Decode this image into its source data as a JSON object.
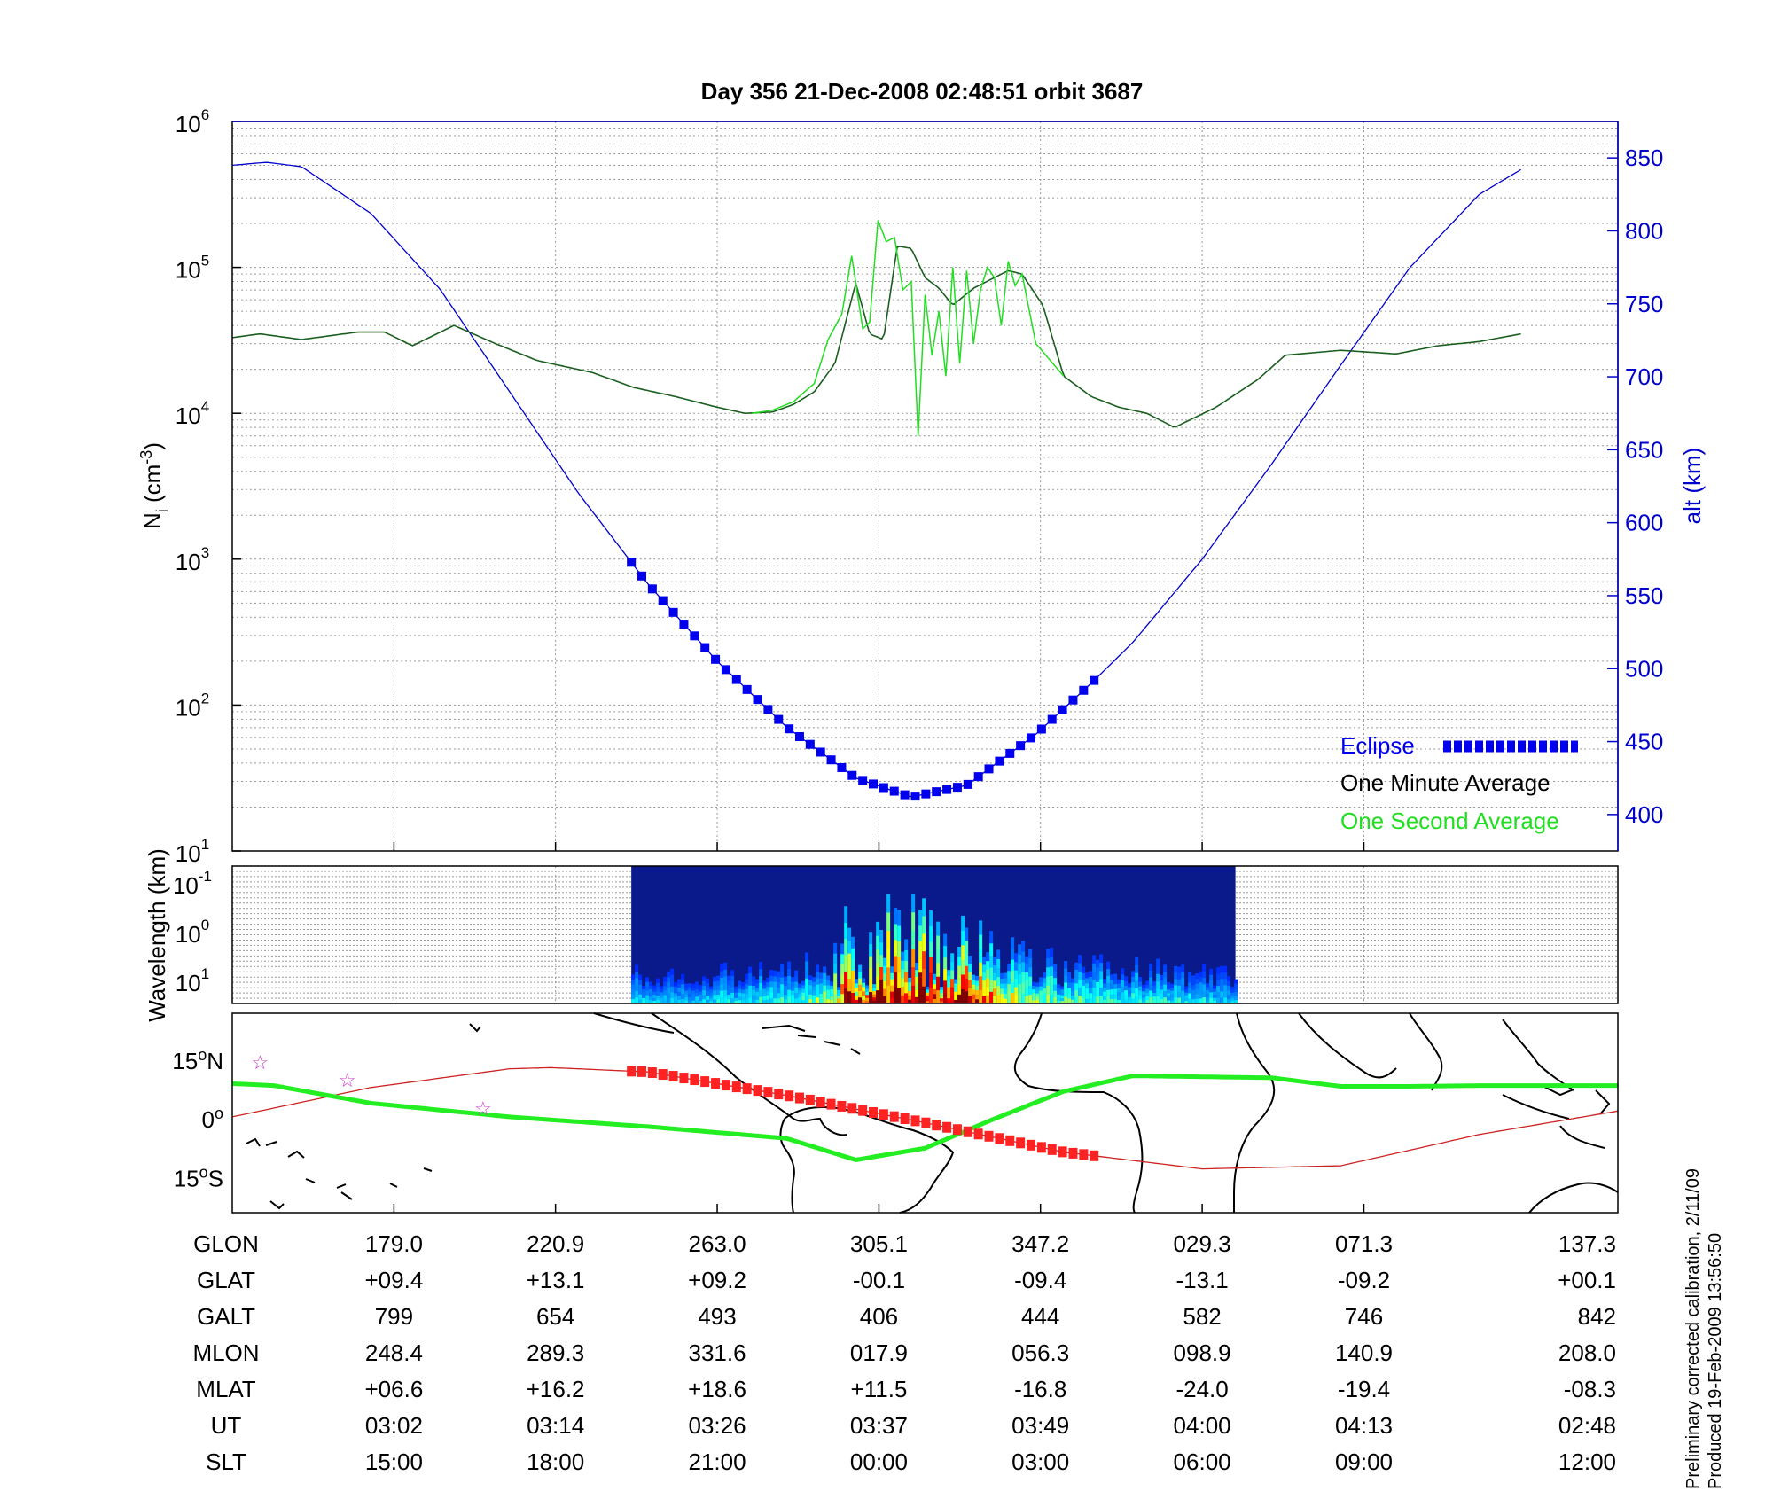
{
  "title": "Day 356  21-Dec-2008 02:48:51   orbit 3687",
  "footer": {
    "line1": "Preliminary corrected calibration, 2/11/09",
    "line2": "Produced 19-Feb-2009 13:56:50"
  },
  "colors": {
    "altitude": "#0000cc",
    "eclipse": "#0000ee",
    "one_minute": "#000000",
    "one_second": "#22dd22",
    "map_track": "#ff2222",
    "map_track_thin": "#cc2222",
    "magnetic_equator": "#22ee22",
    "stars": "#cc44cc"
  },
  "chart_data": [
    {
      "type": "line",
      "panel": "density-altitude",
      "ylabel": "N",
      "ylabel_sub": "i",
      "ylabel_unit_pre": " (cm",
      "ylabel_unit_sup": "-3",
      "ylabel_unit_post": ")",
      "ylabel_right": "alt (km)",
      "yscale": "log",
      "ylim": [
        10,
        1000000
      ],
      "y_ticks": [
        {
          "base": "10",
          "exp": "1"
        },
        {
          "base": "10",
          "exp": "2"
        },
        {
          "base": "10",
          "exp": "3"
        },
        {
          "base": "10",
          "exp": "4"
        },
        {
          "base": "10",
          "exp": "5"
        },
        {
          "base": "10",
          "exp": "6"
        }
      ],
      "y2lim": [
        375,
        875
      ],
      "y2_ticks": [
        "400",
        "450",
        "500",
        "550",
        "600",
        "650",
        "700",
        "750",
        "800",
        "850"
      ],
      "x_tick_fracs": [
        0.1167,
        0.2333,
        0.35,
        0.4667,
        0.5833,
        0.7,
        0.8167
      ],
      "grid": true,
      "legend": {
        "placement": "bottom-right",
        "entries": [
          {
            "label": "Eclipse",
            "color": "#0000ee",
            "style": "dashed-blocks"
          },
          {
            "label": "One Minute Average",
            "color": "#000000",
            "style": "none"
          },
          {
            "label": "One Second Average",
            "color": "#22dd22",
            "style": "none"
          }
        ]
      },
      "altitude": {
        "name": "alt (km)",
        "t": [
          0,
          0.025,
          0.05,
          0.1,
          0.15,
          0.2,
          0.25,
          0.3,
          0.35,
          0.4,
          0.45,
          0.49,
          0.53,
          0.58,
          0.62,
          0.65,
          0.7,
          0.75,
          0.8,
          0.85,
          0.9,
          0.93
        ],
        "values": [
          845,
          847,
          844,
          812,
          760,
          690,
          620,
          558,
          505,
          460,
          425,
          412,
          420,
          455,
          490,
          518,
          575,
          640,
          708,
          775,
          825,
          842
        ]
      },
      "eclipse": {
        "t_start": 0.288,
        "t_end": 0.622
      },
      "one_minute": {
        "name": "One Minute Average",
        "t": [
          0,
          0.02,
          0.05,
          0.09,
          0.11,
          0.13,
          0.16,
          0.19,
          0.22,
          0.26,
          0.29,
          0.32,
          0.35,
          0.37,
          0.39,
          0.405,
          0.42,
          0.435,
          0.45,
          0.46,
          0.47,
          0.48,
          0.49,
          0.5,
          0.51,
          0.52,
          0.535,
          0.55,
          0.56,
          0.57,
          0.585,
          0.6,
          0.62,
          0.64,
          0.66,
          0.68,
          0.71,
          0.74,
          0.76,
          0.8,
          0.84,
          0.87,
          0.9,
          0.93
        ],
        "values": [
          33000,
          35000,
          32000,
          36000,
          36000,
          29000,
          40000,
          30000,
          23000,
          19000,
          15000,
          13000,
          11000,
          10000,
          10200,
          11500,
          14000,
          22000,
          78000,
          35000,
          32000,
          140000,
          135000,
          85000,
          72000,
          55000,
          72000,
          85000,
          95000,
          90000,
          55000,
          18000,
          13000,
          11000,
          10000,
          8000,
          11000,
          17000,
          25000,
          27000,
          25500,
          29000,
          31000,
          35000
        ]
      },
      "one_second": {
        "name": "One Second Average",
        "t": [
          0.375,
          0.39,
          0.405,
          0.42,
          0.43,
          0.44,
          0.447,
          0.455,
          0.46,
          0.466,
          0.472,
          0.478,
          0.484,
          0.49,
          0.495,
          0.5,
          0.505,
          0.51,
          0.515,
          0.52,
          0.525,
          0.53,
          0.535,
          0.54,
          0.545,
          0.55,
          0.555,
          0.56,
          0.565,
          0.57,
          0.58,
          0.6
        ],
        "values": [
          10000,
          10500,
          12000,
          16000,
          32000,
          48000,
          120000,
          38000,
          42000,
          210000,
          150000,
          160000,
          70000,
          80000,
          7000,
          65000,
          25000,
          50000,
          18000,
          100000,
          22000,
          95000,
          30000,
          70000,
          100000,
          85000,
          40000,
          110000,
          75000,
          90000,
          30000,
          18000
        ]
      }
    },
    {
      "type": "heatmap",
      "panel": "wavelength-spectrogram",
      "ylabel": "Wavelength (km)",
      "yscale": "log",
      "y_ticks": [
        {
          "base": "10",
          "exp": "-1"
        },
        {
          "base": "10",
          "exp": "0"
        },
        {
          "base": "10",
          "exp": "1"
        }
      ],
      "t_start": 0.288,
      "t_end": 0.724,
      "intensity_envelope": {
        "t": [
          0.288,
          0.31,
          0.36,
          0.4,
          0.43,
          0.44,
          0.46,
          0.5,
          0.53,
          0.55,
          0.56,
          0.6,
          0.65,
          0.7,
          0.724
        ],
        "values": [
          0.25,
          0.2,
          0.25,
          0.3,
          0.45,
          0.8,
          0.95,
          0.95,
          0.9,
          0.6,
          0.5,
          0.35,
          0.3,
          0.25,
          0.2
        ]
      },
      "colormap": "jet"
    },
    {
      "type": "line",
      "panel": "ground-track-map",
      "y_ticks": [
        {
          "value": "15",
          "hemi": "N"
        },
        {
          "value": "0",
          "hemi": ""
        },
        {
          "value": "15",
          "hemi": "S"
        }
      ],
      "ylim": [
        -24,
        27
      ],
      "orbit_track": {
        "t": [
          0,
          0.1,
          0.2,
          0.23,
          0.3,
          0.4,
          0.5,
          0.6,
          0.7,
          0.8,
          0.9,
          1.0
        ],
        "lat": [
          0.5,
          8,
          12.8,
          13.1,
          12,
          6,
          -1,
          -8.5,
          -12.8,
          -12,
          -4,
          2
        ]
      },
      "eclipse_track": {
        "t_start": 0.288,
        "t_end": 0.622
      },
      "magnetic_equator": {
        "t": [
          0,
          0.03,
          0.1,
          0.2,
          0.3,
          0.4,
          0.45,
          0.5,
          0.55,
          0.6,
          0.65,
          0.75,
          0.8,
          0.85,
          0.9,
          1.0
        ],
        "lat": [
          9,
          8.5,
          4,
          0.5,
          -2,
          -5,
          -10.5,
          -7.5,
          0,
          7,
          11,
          10.5,
          8.3,
          8.3,
          8.5,
          8.5
        ]
      },
      "stars": [
        {
          "t": 0.02,
          "lat": 14.5
        },
        {
          "t": 0.083,
          "lat": 10
        },
        {
          "t": 0.181,
          "lat": 2.7
        }
      ]
    }
  ],
  "ephemeris": {
    "columns_t": [
      0.1167,
      0.2333,
      0.35,
      0.4667,
      0.5833,
      0.7,
      0.8167,
      1.0
    ],
    "rows": [
      {
        "label": "GLON",
        "values": [
          "179.0",
          "220.9",
          "263.0",
          "305.1",
          "347.2",
          "029.3",
          "071.3",
          "137.3"
        ]
      },
      {
        "label": "GLAT",
        "values": [
          "+09.4",
          "+13.1",
          "+09.2",
          "-00.1",
          "-09.4",
          "-13.1",
          "-09.2",
          "+00.1"
        ]
      },
      {
        "label": "GALT",
        "values": [
          "799",
          "654",
          "493",
          "406",
          "444",
          "582",
          "746",
          "842"
        ]
      },
      {
        "label": "MLON",
        "values": [
          "248.4",
          "289.3",
          "331.6",
          "017.9",
          "056.3",
          "098.9",
          "140.9",
          "208.0"
        ]
      },
      {
        "label": "MLAT",
        "values": [
          "+06.6",
          "+16.2",
          "+18.6",
          "+11.5",
          "-16.8",
          "-24.0",
          "-19.4",
          "-08.3"
        ]
      },
      {
        "label": "UT",
        "values": [
          "03:02",
          "03:14",
          "03:26",
          "03:37",
          "03:49",
          "04:00",
          "04:13",
          "02:48"
        ]
      },
      {
        "label": "SLT",
        "values": [
          "15:00",
          "18:00",
          "21:00",
          "00:00",
          "03:00",
          "06:00",
          "09:00",
          "12:00"
        ]
      }
    ]
  }
}
